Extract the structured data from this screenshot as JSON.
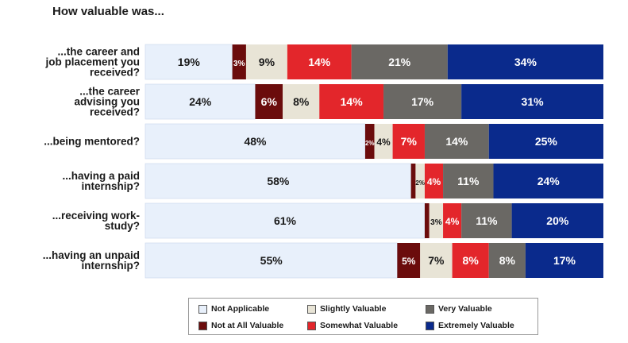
{
  "chart_data": {
    "type": "bar",
    "orientation": "horizontal",
    "stacked": true,
    "title": "How valuable was...",
    "categories": [
      [
        "...the career and",
        "job placement you",
        "received?"
      ],
      [
        "...the career",
        "advising you",
        "received?"
      ],
      [
        "...being mentored?"
      ],
      [
        "...having a paid",
        "internship?"
      ],
      [
        "...receiving work-",
        "study?"
      ],
      [
        "...having an unpaid",
        "internship?"
      ]
    ],
    "series": [
      {
        "name": "Not Applicable",
        "color": "#e8f0fb",
        "text_color": "#1a1a1a",
        "values": [
          19,
          24,
          48,
          58,
          61,
          55
        ]
      },
      {
        "name": "Not at All Valuable",
        "color": "#6b0c0c",
        "text_color": "#ffffff",
        "values": [
          3,
          6,
          2,
          1,
          1,
          5
        ]
      },
      {
        "name": "Slightly Valuable",
        "color": "#e8e4d6",
        "text_color": "#1a1a1a",
        "values": [
          9,
          8,
          4,
          2,
          3,
          7
        ]
      },
      {
        "name": "Somewhat Valuable",
        "color": "#e3262b",
        "text_color": "#ffffff",
        "values": [
          14,
          14,
          7,
          4,
          4,
          8
        ]
      },
      {
        "name": "Very Valuable",
        "color": "#6a6864",
        "text_color": "#ffffff",
        "values": [
          21,
          17,
          14,
          11,
          11,
          8
        ]
      },
      {
        "name": "Extremely Valuable",
        "color": "#0a2a8c",
        "text_color": "#ffffff",
        "values": [
          34,
          31,
          25,
          24,
          20,
          17
        ]
      }
    ],
    "data_labels": [
      [
        "19%",
        "3%",
        "9%",
        "14%",
        "21%",
        "34%"
      ],
      [
        "24%",
        "6%",
        "8%",
        "14%",
        "17%",
        "31%"
      ],
      [
        "48%",
        "2%",
        "4%",
        "7%",
        "14%",
        "25%"
      ],
      [
        "58%",
        "",
        "2%",
        "4%",
        "11%",
        "24%"
      ],
      [
        "61%",
        "",
        "3%",
        "4%",
        "11%",
        "20%"
      ],
      [
        "55%",
        "5%",
        "7%",
        "8%",
        "8%",
        "17%"
      ]
    ],
    "xlim": [
      0,
      100
    ],
    "legend_position": "bottom"
  }
}
